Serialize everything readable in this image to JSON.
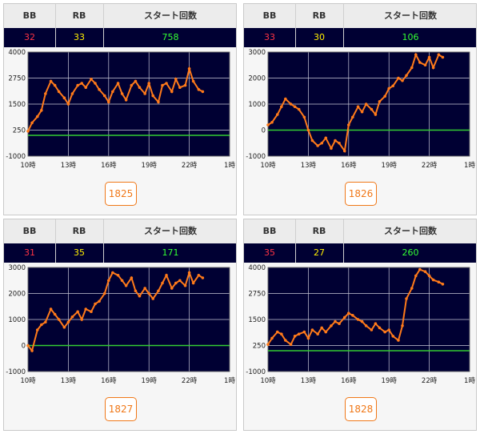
{
  "headers": {
    "bb": "BB",
    "rb": "RB",
    "start": "スタート回数"
  },
  "colors": {
    "bb": "#ff3344",
    "rb": "#ffee00",
    "start": "#33ff33",
    "plot_bg": "#000033",
    "line": "#ff7a1a",
    "zero": "#33cc33",
    "button": "#f07818"
  },
  "panels": [
    {
      "bb": "32",
      "rb": "33",
      "start": "758",
      "machine": "1825"
    },
    {
      "bb": "33",
      "rb": "30",
      "start": "106",
      "machine": "1826"
    },
    {
      "bb": "31",
      "rb": "35",
      "start": "171",
      "machine": "1827"
    },
    {
      "bb": "35",
      "rb": "27",
      "start": "260",
      "machine": "1828"
    }
  ],
  "chart_data": [
    {
      "type": "line",
      "x_ticks": [
        "10時",
        "13時",
        "16時",
        "19時",
        "22時",
        "1時"
      ],
      "y_ticks": [
        "4000",
        "2750",
        "1500",
        "250",
        "-1000"
      ],
      "ylim": [
        -1000,
        4000
      ],
      "xlim": [
        10,
        25
      ],
      "grid": true,
      "x": [
        10.0,
        10.3,
        10.7,
        11.0,
        11.3,
        11.7,
        12.0,
        12.3,
        12.7,
        13.0,
        13.3,
        13.7,
        14.0,
        14.3,
        14.7,
        15.0,
        15.3,
        15.7,
        16.0,
        16.3,
        16.7,
        17.0,
        17.3,
        17.7,
        18.0,
        18.3,
        18.7,
        19.0,
        19.3,
        19.7,
        20.0,
        20.3,
        20.7,
        21.0,
        21.3,
        21.7,
        22.0,
        22.3,
        22.7,
        23.0
      ],
      "y": [
        200,
        600,
        900,
        1200,
        2000,
        2600,
        2400,
        2100,
        1800,
        1500,
        2000,
        2400,
        2500,
        2300,
        2700,
        2500,
        2200,
        1900,
        1600,
        2100,
        2500,
        2000,
        1700,
        2400,
        2600,
        2300,
        2000,
        2500,
        1900,
        1600,
        2400,
        2500,
        2100,
        2700,
        2300,
        2400,
        3200,
        2600,
        2200,
        2100
      ]
    },
    {
      "type": "line",
      "x_ticks": [
        "10時",
        "13時",
        "16時",
        "19時",
        "22時",
        "1時"
      ],
      "y_ticks": [
        "3000",
        "2000",
        "1000",
        "0",
        "-1000"
      ],
      "ylim": [
        -1000,
        3000
      ],
      "xlim": [
        10,
        25
      ],
      "grid": true,
      "x": [
        10.0,
        10.3,
        10.7,
        11.0,
        11.3,
        11.7,
        12.0,
        12.3,
        12.7,
        13.0,
        13.3,
        13.7,
        14.0,
        14.3,
        14.7,
        15.0,
        15.3,
        15.7,
        16.0,
        16.3,
        16.7,
        17.0,
        17.3,
        17.7,
        18.0,
        18.3,
        18.7,
        19.0,
        19.3,
        19.7,
        20.0,
        20.3,
        20.7,
        21.0,
        21.3,
        21.7,
        22.0,
        22.3,
        22.7,
        23.0
      ],
      "y": [
        200,
        300,
        600,
        900,
        1200,
        1000,
        900,
        800,
        500,
        0,
        -400,
        -600,
        -500,
        -300,
        -700,
        -400,
        -500,
        -800,
        200,
        500,
        900,
        700,
        1000,
        800,
        600,
        1100,
        1300,
        1600,
        1700,
        2000,
        1900,
        2100,
        2400,
        2900,
        2600,
        2500,
        2800,
        2400,
        2900,
        2800
      ]
    },
    {
      "type": "line",
      "x_ticks": [
        "10時",
        "13時",
        "16時",
        "19時",
        "22時",
        "1時"
      ],
      "y_ticks": [
        "3000",
        "2000",
        "1000",
        "0",
        "-1000"
      ],
      "ylim": [
        -1000,
        3000
      ],
      "xlim": [
        10,
        25
      ],
      "grid": true,
      "x": [
        10.0,
        10.3,
        10.7,
        11.0,
        11.3,
        11.7,
        12.0,
        12.3,
        12.7,
        13.0,
        13.3,
        13.7,
        14.0,
        14.3,
        14.7,
        15.0,
        15.3,
        15.7,
        16.0,
        16.3,
        16.7,
        17.0,
        17.3,
        17.7,
        18.0,
        18.3,
        18.7,
        19.0,
        19.3,
        19.7,
        20.0,
        20.3,
        20.7,
        21.0,
        21.3,
        21.7,
        22.0,
        22.3,
        22.7,
        23.0
      ],
      "y": [
        0,
        -200,
        600,
        800,
        900,
        1400,
        1200,
        1000,
        700,
        900,
        1100,
        1300,
        1000,
        1400,
        1300,
        1600,
        1700,
        2000,
        2500,
        2800,
        2700,
        2500,
        2300,
        2600,
        2100,
        1900,
        2200,
        2000,
        1800,
        2100,
        2400,
        2700,
        2200,
        2400,
        2500,
        2300,
        2800,
        2400,
        2700,
        2600
      ]
    },
    {
      "type": "line",
      "x_ticks": [
        "10時",
        "13時",
        "16時",
        "19時",
        "22時",
        "1時"
      ],
      "y_ticks": [
        "4000",
        "2750",
        "1500",
        "250",
        "-1000"
      ],
      "ylim": [
        -1000,
        4000
      ],
      "xlim": [
        10,
        25
      ],
      "grid": true,
      "x": [
        10.0,
        10.3,
        10.7,
        11.0,
        11.3,
        11.7,
        12.0,
        12.3,
        12.7,
        13.0,
        13.3,
        13.7,
        14.0,
        14.3,
        14.7,
        15.0,
        15.3,
        15.7,
        16.0,
        16.3,
        16.7,
        17.0,
        17.3,
        17.7,
        18.0,
        18.3,
        18.7,
        19.0,
        19.3,
        19.7,
        20.0,
        20.3,
        20.7,
        21.0,
        21.3,
        21.7,
        22.0,
        22.3,
        22.7,
        23.0
      ],
      "y": [
        300,
        600,
        900,
        800,
        500,
        300,
        700,
        800,
        900,
        600,
        1000,
        800,
        1100,
        900,
        1200,
        1400,
        1300,
        1600,
        1800,
        1700,
        1500,
        1400,
        1200,
        1000,
        1300,
        1100,
        900,
        1000,
        700,
        500,
        1200,
        2500,
        3000,
        3600,
        3900,
        3800,
        3600,
        3400,
        3300,
        3200
      ]
    }
  ]
}
